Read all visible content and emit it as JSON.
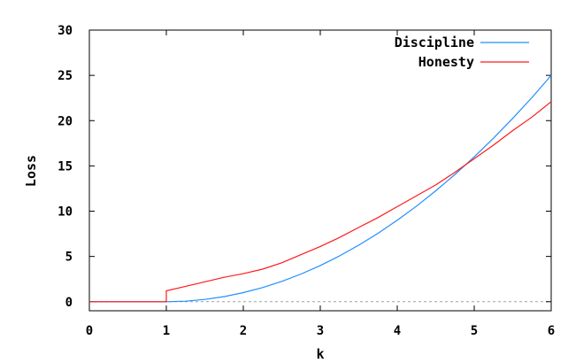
{
  "chart_data": {
    "type": "line",
    "title": "",
    "xlabel": "k",
    "ylabel": "Loss",
    "xlim": [
      0,
      6
    ],
    "ylim": [
      -1,
      30
    ],
    "xticks": [
      "0",
      "1",
      "2",
      "3",
      "4",
      "5",
      "6"
    ],
    "yticks": [
      "0",
      "5",
      "10",
      "15",
      "20",
      "25",
      "30"
    ],
    "grid": false,
    "legend_position": "top-right",
    "zero_line": {
      "y": 0,
      "style": "dashed",
      "color": "#a0a0a0"
    },
    "series": [
      {
        "name": "Discipline",
        "color": "#1f8fff",
        "x": [
          0,
          1.0,
          1.0,
          1.25,
          1.5,
          1.75,
          2.0,
          2.25,
          2.5,
          2.75,
          3.0,
          3.25,
          3.5,
          3.75,
          4.0,
          4.25,
          4.5,
          4.75,
          5.0,
          5.25,
          5.5,
          5.75,
          6.0
        ],
        "y": [
          0,
          0,
          0,
          0.06,
          0.25,
          0.56,
          1.0,
          1.56,
          2.25,
          3.06,
          4.0,
          5.06,
          6.25,
          7.56,
          9.0,
          10.56,
          12.25,
          14.06,
          16.0,
          18.06,
          20.25,
          22.56,
          25.0
        ]
      },
      {
        "name": "Honesty",
        "color": "#ff1a1a",
        "x": [
          0,
          1.0,
          1.0,
          1.25,
          1.5,
          1.75,
          2.0,
          2.25,
          2.5,
          2.75,
          3.0,
          3.25,
          3.5,
          3.75,
          4.0,
          4.25,
          4.5,
          4.75,
          5.0,
          5.25,
          5.5,
          5.75,
          6.0
        ],
        "y": [
          0,
          0,
          1.2,
          1.7,
          2.2,
          2.7,
          3.1,
          3.6,
          4.3,
          5.2,
          6.1,
          7.1,
          8.2,
          9.3,
          10.5,
          11.7,
          12.9,
          14.3,
          15.8,
          17.3,
          18.9,
          20.4,
          22.1
        ]
      }
    ]
  }
}
